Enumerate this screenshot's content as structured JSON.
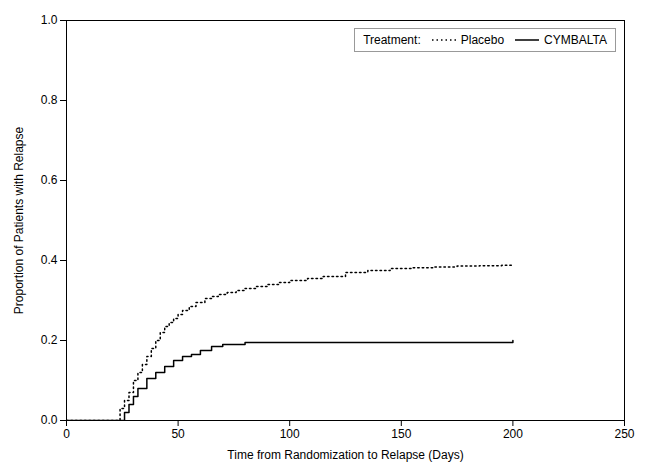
{
  "chart_data": {
    "type": "line",
    "title": "",
    "xlabel": "Time from Randomization to Relapse (Days)",
    "ylabel": "Proportion of Patients with Relapse",
    "xlim": [
      0,
      250
    ],
    "ylim": [
      0,
      1.0
    ],
    "xticks": [
      0,
      50,
      100,
      150,
      200,
      250
    ],
    "yticks": [
      {
        "value": 0,
        "label": "0.0"
      },
      0.2,
      0.4,
      0.6,
      0.8,
      {
        "value": 1.0,
        "label": "1.0"
      }
    ],
    "grid": false,
    "legend": "upper right",
    "legend_title": "Treatment:",
    "series": [
      {
        "name": "Placebo",
        "color": "#000000",
        "line_style": "dotted",
        "x": [
          0,
          20,
          24,
          26,
          28,
          30,
          32,
          34,
          36,
          38,
          40,
          42,
          44,
          46,
          48,
          50,
          52,
          55,
          58,
          62,
          65,
          68,
          72,
          76,
          80,
          85,
          90,
          95,
          100,
          108,
          115,
          125,
          135,
          145,
          155,
          165,
          175,
          185,
          195,
          200
        ],
        "values": [
          0.0,
          0.0,
          0.03,
          0.05,
          0.07,
          0.1,
          0.12,
          0.14,
          0.16,
          0.18,
          0.2,
          0.22,
          0.235,
          0.245,
          0.255,
          0.265,
          0.275,
          0.285,
          0.295,
          0.305,
          0.31,
          0.315,
          0.32,
          0.325,
          0.33,
          0.335,
          0.34,
          0.345,
          0.35,
          0.355,
          0.36,
          0.37,
          0.375,
          0.38,
          0.382,
          0.384,
          0.386,
          0.387,
          0.388,
          0.388
        ]
      },
      {
        "name": "CYMBALTA",
        "color": "#000000",
        "line_style": "solid",
        "x": [
          0,
          22,
          26,
          28,
          30,
          32,
          36,
          40,
          44,
          48,
          52,
          56,
          60,
          65,
          70,
          80,
          90,
          100,
          120,
          140,
          160,
          175,
          200
        ],
        "values": [
          0.0,
          0.0,
          0.02,
          0.04,
          0.06,
          0.08,
          0.105,
          0.12,
          0.135,
          0.15,
          0.16,
          0.165,
          0.175,
          0.185,
          0.19,
          0.195,
          0.195,
          0.195,
          0.195,
          0.195,
          0.195,
          0.195,
          0.2
        ]
      }
    ]
  }
}
